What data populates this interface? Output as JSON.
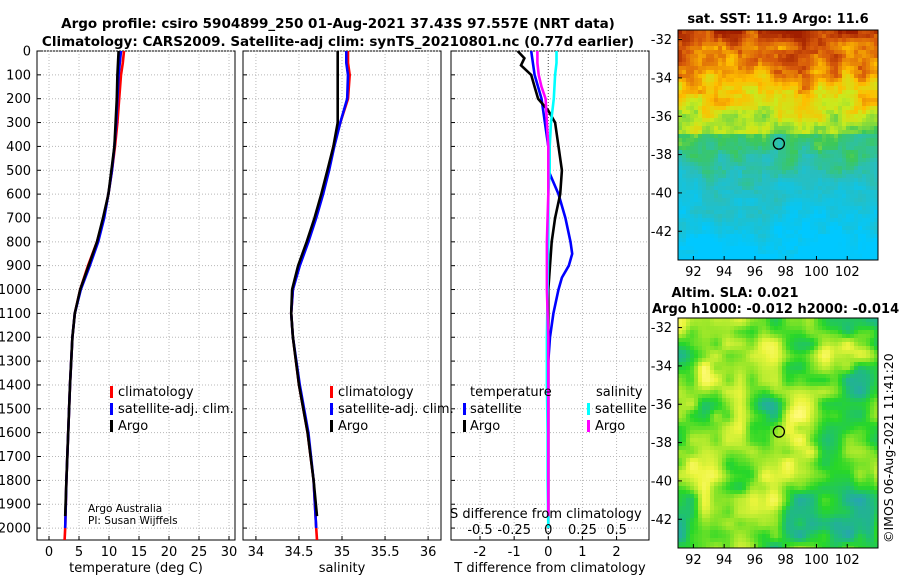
{
  "title_line1": "Argo profile: csiro 5904899_250 01-Aug-2021 37.43S 97.557E (NRT data)",
  "title_line2": "Climatology: CARS2009. Satellite-adj clim: synTS_20210801.nc (0.77d earlier)",
  "sst_title": "sat. SST: 11.9 Argo: 11.6",
  "sla_title1": "Altim. SLA: 0.021",
  "sla_title2": "Argo h1000: -0.012 h2000: -0.014",
  "credit1": "Argo Australia",
  "credit2": "PI: Susan Wijffels",
  "stamp": "©IMOS 06-Aug-2021 11:41:20",
  "colors": {
    "climatology": "#ff0000",
    "satellite": "#0000ff",
    "argo": "#000000",
    "sat_salinity": "#00ffff",
    "argo_salinity": "#ff00ff"
  },
  "chart_data": [
    {
      "type": "line",
      "id": "temperature",
      "xlabel": "temperature (deg C)",
      "ylabel": "",
      "xlim": [
        -2,
        31
      ],
      "ylim": [
        2050,
        0
      ],
      "xticks": [
        0,
        5,
        10,
        15,
        20,
        25,
        30
      ],
      "yticks": [
        0,
        100,
        200,
        300,
        400,
        500,
        600,
        700,
        800,
        900,
        1000,
        1100,
        1200,
        1300,
        1400,
        1500,
        1600,
        1700,
        1800,
        1900,
        2000
      ],
      "grid": true,
      "legend": [
        "climatology",
        "satellite-adj. clim.",
        "Argo"
      ],
      "series": [
        {
          "name": "climatology",
          "depth": [
            0,
            50,
            100,
            200,
            300,
            400,
            500,
            600,
            700,
            800,
            900,
            1000,
            1100,
            1200,
            1400,
            1600,
            1800,
            2000,
            2050
          ],
          "values": [
            12.5,
            12.3,
            12.0,
            11.7,
            11.4,
            11.0,
            10.5,
            9.9,
            9.1,
            8.0,
            6.5,
            5.2,
            4.3,
            3.9,
            3.5,
            3.2,
            2.9,
            2.7,
            2.6
          ]
        },
        {
          "name": "satellite-adj. clim.",
          "depth": [
            0,
            50,
            100,
            200,
            300,
            400,
            500,
            600,
            700,
            800,
            900,
            1000,
            1100,
            1200,
            1400,
            1600,
            1800,
            2000
          ],
          "values": [
            12.0,
            11.8,
            11.6,
            11.4,
            11.2,
            10.9,
            10.5,
            9.9,
            9.2,
            8.2,
            6.8,
            5.3,
            4.3,
            3.9,
            3.5,
            3.2,
            2.9,
            2.7
          ]
        },
        {
          "name": "Argo",
          "depth": [
            0,
            50,
            100,
            200,
            300,
            400,
            500,
            600,
            700,
            800,
            900,
            1000,
            1100,
            1200,
            1400,
            1600,
            1800,
            1950
          ],
          "values": [
            11.6,
            11.5,
            11.4,
            11.3,
            11.1,
            10.9,
            10.4,
            9.9,
            9.0,
            8.0,
            6.6,
            5.2,
            4.3,
            3.9,
            3.5,
            3.2,
            2.9,
            2.7
          ]
        }
      ]
    },
    {
      "type": "line",
      "id": "salinity",
      "xlabel": "salinity",
      "xlim": [
        33.85,
        36.15
      ],
      "ylim": [
        2050,
        0
      ],
      "xticks": [
        34,
        34.5,
        35,
        35.5,
        36
      ],
      "grid": true,
      "legend": [
        "climatology",
        "satellite-adj. clim.",
        "Argo"
      ],
      "series": [
        {
          "name": "climatology",
          "depth": [
            0,
            50,
            100,
            200,
            300,
            400,
            500,
            600,
            700,
            800,
            900,
            1000,
            1100,
            1200,
            1400,
            1600,
            1800,
            2000,
            2050
          ],
          "values": [
            35.07,
            35.07,
            35.09,
            35.07,
            34.98,
            34.9,
            34.84,
            34.77,
            34.69,
            34.6,
            34.5,
            34.43,
            34.41,
            34.43,
            34.5,
            34.6,
            34.67,
            34.7,
            34.71
          ]
        },
        {
          "name": "satellite-adj. clim.",
          "depth": [
            0,
            50,
            100,
            200,
            300,
            400,
            500,
            600,
            700,
            800,
            900,
            1000,
            1100,
            1200,
            1400,
            1600,
            1800,
            2000
          ],
          "values": [
            35.05,
            35.05,
            35.07,
            35.06,
            34.98,
            34.91,
            34.85,
            34.78,
            34.7,
            34.61,
            34.51,
            34.43,
            34.41,
            34.43,
            34.51,
            34.61,
            34.67,
            34.7
          ]
        },
        {
          "name": "Argo",
          "depth": [
            0,
            50,
            100,
            200,
            300,
            400,
            500,
            600,
            700,
            800,
            900,
            1000,
            1100,
            1200,
            1400,
            1600,
            1800,
            1950
          ],
          "values": [
            34.95,
            34.95,
            34.95,
            34.95,
            34.95,
            34.9,
            34.83,
            34.76,
            34.68,
            34.59,
            34.49,
            34.42,
            34.41,
            34.43,
            34.5,
            34.6,
            34.67,
            34.71
          ]
        }
      ]
    },
    {
      "type": "line",
      "id": "difference",
      "xlabel": "T difference from climatology",
      "toplabel": "S difference from climatology",
      "xlim": [
        -2.85,
        2.95
      ],
      "ylim": [
        2050,
        0
      ],
      "xticks": [
        -2,
        -1,
        0,
        1,
        2
      ],
      "s_ticks": [
        "-0.5",
        "-0.25",
        "0",
        "0.25",
        "0.5"
      ],
      "s_tick_values": [
        -0.5,
        -0.25,
        0,
        0.25,
        0.5
      ],
      "s_scale": 4,
      "grid": true,
      "legend_temperature": "temperature",
      "legend_salinity": "salinity",
      "legend_entries": [
        "satellite",
        "Argo",
        "satellite",
        "Argo"
      ],
      "series": [
        {
          "name": "temperature satellite",
          "depth": [
            0,
            100,
            200,
            300,
            400,
            500,
            600,
            700,
            800,
            850,
            900,
            950,
            1000,
            1100,
            1200,
            1300,
            1400,
            1500,
            1600,
            1700,
            1800,
            1900,
            2000
          ],
          "values": [
            -0.5,
            -0.4,
            -0.2,
            -0.1,
            0.0,
            0.0,
            0.3,
            0.5,
            0.65,
            0.7,
            0.6,
            0.4,
            0.3,
            0.15,
            0.05,
            0.0,
            0.0,
            0.0,
            0.0,
            0.0,
            0.0,
            0.0,
            0.0
          ]
        },
        {
          "name": "temperature Argo",
          "depth": [
            0,
            30,
            60,
            100,
            150,
            200,
            250,
            300,
            350,
            400,
            500,
            600,
            700,
            800,
            900,
            1000,
            1100,
            1200,
            1400,
            1600,
            1800,
            1950
          ],
          "values": [
            -0.9,
            -0.7,
            -0.8,
            -0.5,
            -0.4,
            -0.3,
            0.0,
            0.2,
            0.25,
            0.3,
            0.4,
            0.35,
            0.2,
            0.1,
            0.05,
            0.0,
            0.0,
            0.0,
            0.0,
            0.0,
            0.0,
            0.0
          ]
        },
        {
          "name": "salinity satellite",
          "depth": [
            0,
            50,
            100,
            200,
            300,
            400,
            500,
            600,
            800,
            1000,
            1200,
            1400,
            1600,
            1800,
            2000
          ],
          "values": [
            0.06,
            0.06,
            0.05,
            0.04,
            0.02,
            0.01,
            0.01,
            0.0,
            0.0,
            -0.005,
            -0.01,
            -0.01,
            -0.005,
            -0.005,
            0.0
          ]
        },
        {
          "name": "salinity Argo",
          "depth": [
            0,
            50,
            100,
            150,
            200,
            300,
            400,
            500,
            600,
            800,
            1000,
            1200,
            1400,
            1600,
            1800,
            1950
          ],
          "values": [
            -0.08,
            -0.08,
            -0.07,
            -0.05,
            -0.02,
            -0.01,
            0.0,
            0.0,
            0.0,
            -0.01,
            -0.01,
            0.0,
            0.0,
            0.0,
            0.0,
            0.0
          ]
        }
      ]
    },
    {
      "type": "heatmap",
      "id": "sst_map",
      "title": "sat. SST: 11.9 Argo: 11.6",
      "xlim": [
        91,
        104
      ],
      "ylim": [
        -43.5,
        -31.5
      ],
      "xticks": [
        92,
        94,
        96,
        98,
        100,
        102
      ],
      "yticks": [
        -32,
        -34,
        -36,
        -38,
        -40,
        -42
      ],
      "argo_position": {
        "lon": 97.557,
        "lat": -37.43
      }
    },
    {
      "type": "heatmap",
      "id": "sla_map",
      "title": "Altim. SLA: 0.021",
      "subtitle": "Argo h1000: -0.012 h2000: -0.014",
      "xlim": [
        91,
        104
      ],
      "ylim": [
        -43.5,
        -31.5
      ],
      "xticks": [
        92,
        94,
        96,
        98,
        100,
        102
      ],
      "yticks": [
        -32,
        -34,
        -36,
        -38,
        -40,
        -42
      ],
      "argo_position": {
        "lon": 97.557,
        "lat": -37.43
      }
    }
  ]
}
